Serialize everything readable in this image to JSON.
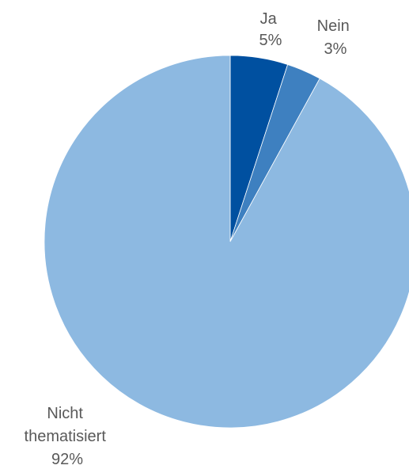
{
  "chart_data": {
    "type": "pie",
    "start_angle_deg": 0,
    "direction": "clockwise",
    "slices": [
      {
        "label_lines": [
          "Ja"
        ],
        "percent_label": "5%",
        "value": 5,
        "color": "#0050a0"
      },
      {
        "label_lines": [
          "Nein"
        ],
        "percent_label": "3%",
        "value": 3,
        "color": "#3e80c0"
      },
      {
        "label_lines": [
          "Nicht",
          "thematisiert"
        ],
        "percent_label": "92%",
        "value": 92,
        "color": "#8db9e1"
      }
    ]
  }
}
